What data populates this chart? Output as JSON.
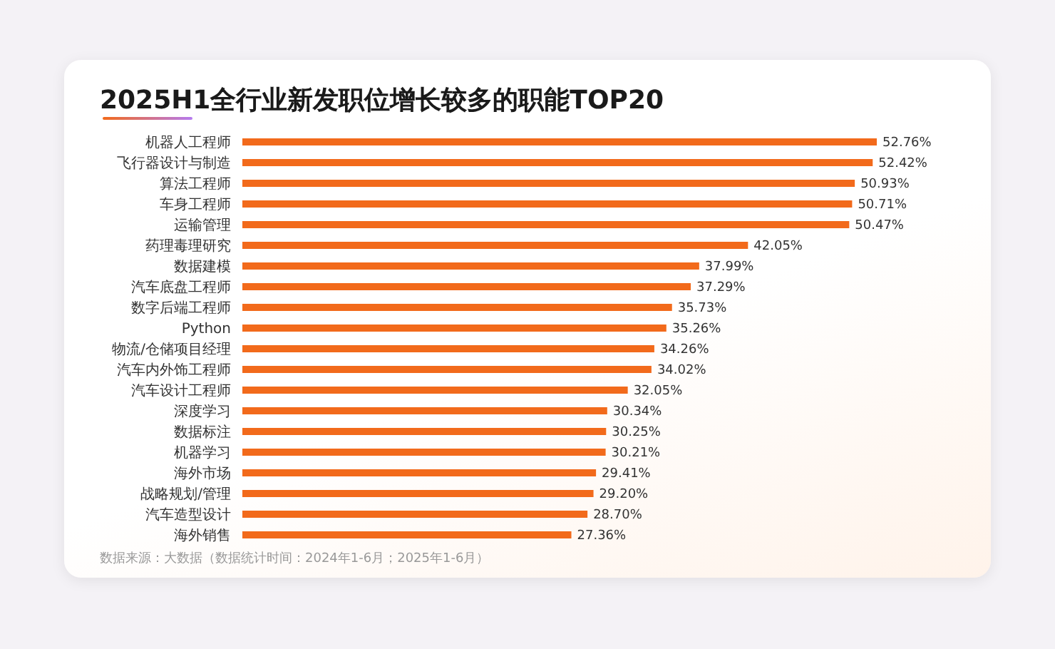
{
  "chart_data": {
    "type": "bar",
    "orientation": "horizontal",
    "title": "2025H1全行业新发职位增长较多的职能TOP20",
    "categories": [
      "机器人工程师",
      "飞行器设计与制造",
      "算法工程师",
      "车身工程师",
      "运输管理",
      "药理毒理研究",
      "数据建模",
      "汽车底盘工程师",
      "数字后端工程师",
      "Python",
      "物流/仓储项目经理",
      "汽车内外饰工程师",
      "汽车设计工程师",
      "深度学习",
      "数据标注",
      "机器学习",
      "海外市场",
      "战略规划/管理",
      "汽车造型设计",
      "海外销售"
    ],
    "values": [
      52.76,
      52.42,
      50.93,
      50.71,
      50.47,
      42.05,
      37.99,
      37.29,
      35.73,
      35.26,
      34.26,
      34.02,
      32.05,
      30.34,
      30.25,
      30.21,
      29.41,
      29.2,
      28.7,
      27.36
    ],
    "value_labels": [
      "52.76%",
      "52.42%",
      "50.93%",
      "50.71%",
      "50.47%",
      "42.05%",
      "37.99%",
      "37.29%",
      "35.73%",
      "35.26%",
      "34.26%",
      "34.02%",
      "32.05%",
      "30.34%",
      "30.25%",
      "30.21%",
      "29.41%",
      "29.20%",
      "28.70%",
      "27.36%"
    ],
    "color": "#f26a1b",
    "grid": false,
    "legend": false,
    "annotations": [
      "数据来源：大数据（数据统计时间：2024年1-6月；2025年1-6月）"
    ]
  }
}
